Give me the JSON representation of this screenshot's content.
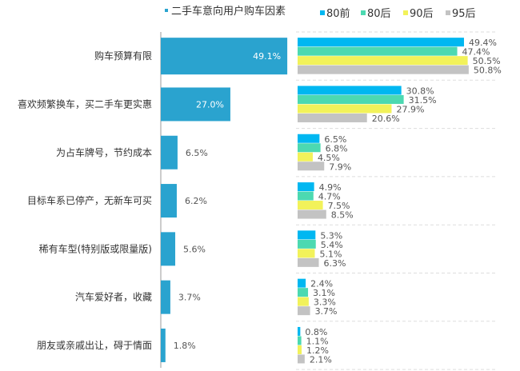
{
  "chart_data": [
    {
      "type": "bar",
      "orientation": "horizontal",
      "legend": "二手车意向用户购车因素",
      "legend_placement": "top",
      "categories": [
        "购车预算有限",
        "喜欢频繁换车，买二手车更实惠",
        "为占车牌号，节约成本",
        "目标车系已停产，无新车可买",
        "稀有车型(特别版或限量版)",
        "汽车爱好者，收藏",
        "朋友或亲戚出让，碍于情面"
      ],
      "values": [
        49.1,
        27.0,
        6.5,
        6.2,
        5.6,
        3.7,
        1.8
      ],
      "labels": [
        "49.1%",
        "27.0%",
        "6.5%",
        "6.2%",
        "5.6%",
        "3.7%",
        "1.8%"
      ],
      "color": "#2aa3cf"
    },
    {
      "type": "bar",
      "orientation": "horizontal",
      "legend_placement": "top",
      "series": [
        {
          "name": "80前",
          "color": "#00b7f1",
          "values": [
            49.4,
            30.8,
            6.5,
            4.9,
            5.3,
            2.4,
            0.8
          ]
        },
        {
          "name": "80后",
          "color": "#4cd9b1",
          "values": [
            47.4,
            31.5,
            6.8,
            4.7,
            5.4,
            3.1,
            1.1
          ]
        },
        {
          "name": "90后",
          "color": "#f2f25a",
          "values": [
            50.5,
            27.9,
            4.5,
            7.5,
            5.1,
            3.3,
            1.2
          ]
        },
        {
          "name": "95后",
          "color": "#c3c3c3",
          "values": [
            50.8,
            20.6,
            7.9,
            8.5,
            6.3,
            3.7,
            2.1
          ]
        }
      ]
    }
  ]
}
